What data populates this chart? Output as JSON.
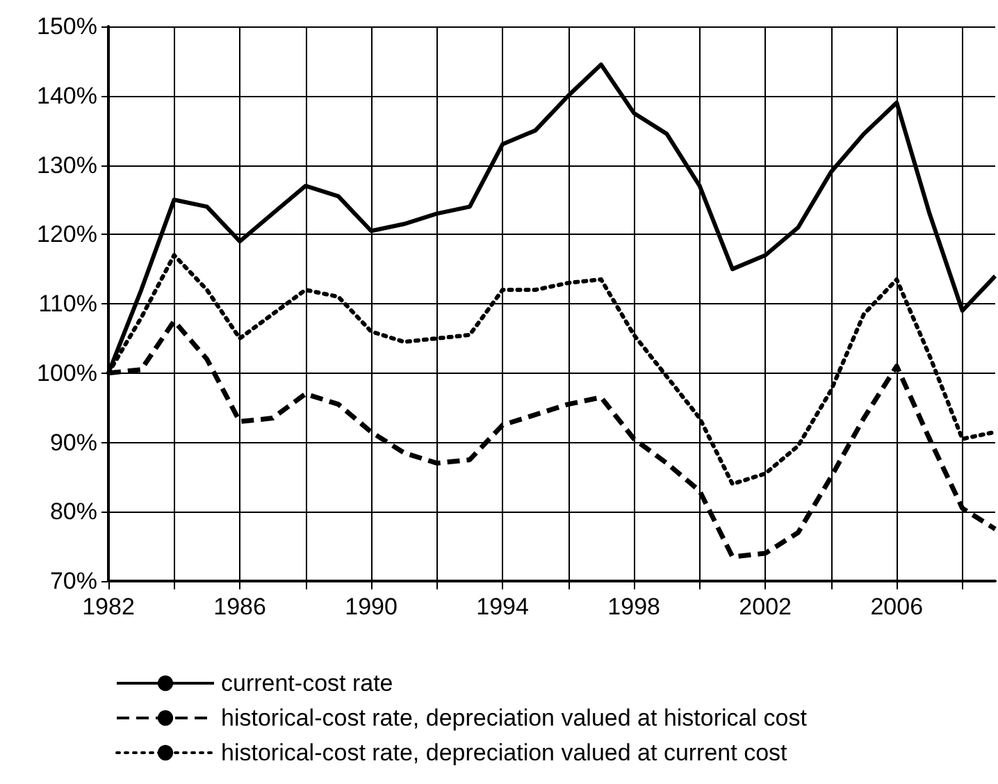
{
  "chart_data": {
    "type": "line",
    "x": [
      1982,
      1983,
      1984,
      1985,
      1986,
      1987,
      1988,
      1989,
      1990,
      1991,
      1992,
      1993,
      1994,
      1995,
      1996,
      1997,
      1998,
      1999,
      2000,
      2001,
      2002,
      2003,
      2004,
      2005,
      2006,
      2007,
      2008,
      2009
    ],
    "series": [
      {
        "name": "current-cost rate",
        "color": "#000000",
        "line_style": "solid",
        "values": [
          100,
          112,
          125,
          124,
          119,
          123,
          127,
          125.5,
          120.5,
          121.5,
          123,
          124,
          133,
          135,
          140,
          144.5,
          137.5,
          134.5,
          127,
          115,
          117,
          121,
          129,
          134.5,
          139,
          123,
          109,
          114
        ]
      },
      {
        "name": "historical-cost rate, depreciation valued at historical cost",
        "color": "#000000",
        "line_style": "dashed",
        "values": [
          100,
          100.5,
          107.5,
          102,
          93,
          93.5,
          97,
          95.5,
          91.5,
          88.5,
          87,
          87.5,
          92.5,
          94,
          95.5,
          96.5,
          90.5,
          87,
          83,
          73.5,
          74,
          77,
          85,
          93.5,
          101,
          90.5,
          80.5,
          77.5
        ]
      },
      {
        "name": "historical-cost rate, depreciation valued at current cost",
        "color": "#000000",
        "line_style": "dotted",
        "values": [
          100,
          108,
          117,
          112,
          105,
          108.5,
          112,
          111,
          106,
          104.5,
          105,
          105.5,
          112,
          112,
          113,
          113.5,
          105.5,
          99.5,
          93.5,
          84,
          85.5,
          89.5,
          97.5,
          108.5,
          113.5,
          102.5,
          90.5,
          91.5
        ]
      }
    ],
    "xlim": [
      1982,
      2009
    ],
    "xticks": [
      1982,
      {
        "value": 1984,
        "label": null
      },
      1986,
      {
        "value": 1988,
        "label": null
      },
      1990,
      {
        "value": 1992,
        "label": null
      },
      1994,
      {
        "value": 1996,
        "label": null
      },
      1998,
      {
        "value": 2000,
        "label": null
      },
      2002,
      {
        "value": 2004,
        "label": null
      },
      2006,
      {
        "value": 2008,
        "label": null
      }
    ],
    "ylim": [
      70,
      150
    ],
    "yticks": [
      {
        "value": 70,
        "label": "70%"
      },
      {
        "value": 80,
        "label": "80%"
      },
      {
        "value": 90,
        "label": "90%"
      },
      {
        "value": 100,
        "label": "100%"
      },
      {
        "value": 110,
        "label": "110%"
      },
      {
        "value": 120,
        "label": "120%"
      },
      {
        "value": 130,
        "label": "130%"
      },
      {
        "value": 140,
        "label": "140%"
      },
      {
        "value": 150,
        "label": "150%"
      }
    ],
    "grid": true,
    "legend": "bottom",
    "marker": "none"
  }
}
